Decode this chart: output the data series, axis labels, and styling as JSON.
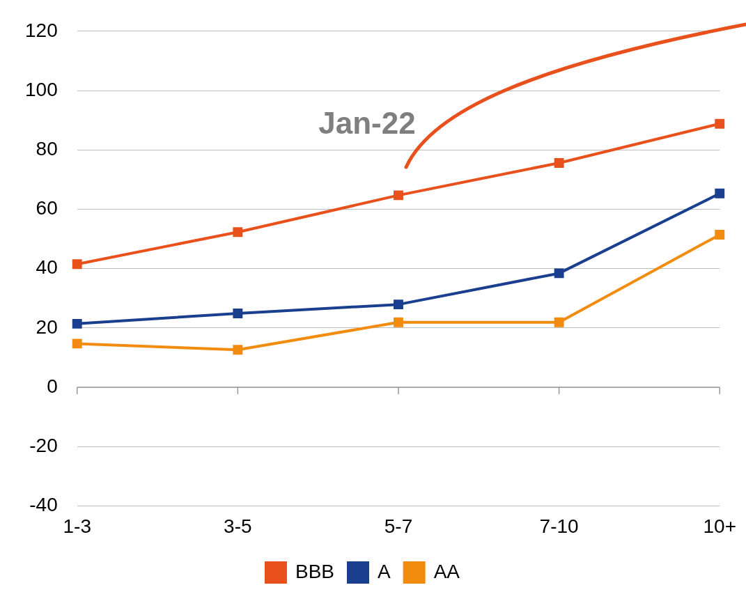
{
  "chart_data": {
    "type": "line",
    "categories": [
      "1-3",
      "3-5",
      "5-7",
      "7-10",
      "10+"
    ],
    "series": [
      {
        "name": "BBB",
        "color": "#e8501c",
        "values": [
          41.5,
          52.3,
          64.7,
          75.6,
          88.8
        ]
      },
      {
        "name": "A",
        "color": "#1b3f8f",
        "values": [
          21.4,
          24.9,
          27.9,
          38.4,
          65.3
        ]
      },
      {
        "name": "AA",
        "color": "#f28c0f",
        "values": [
          14.7,
          12.6,
          21.9,
          21.9,
          51.4
        ]
      }
    ],
    "ylim": [
      -40,
      120
    ],
    "yticks": [
      -40,
      -20,
      0,
      20,
      40,
      60,
      80,
      100,
      120
    ],
    "grid": "y",
    "legend": "bottom",
    "marker": "square",
    "line_style": "solid",
    "annotations": [
      "Jan-22"
    ]
  }
}
